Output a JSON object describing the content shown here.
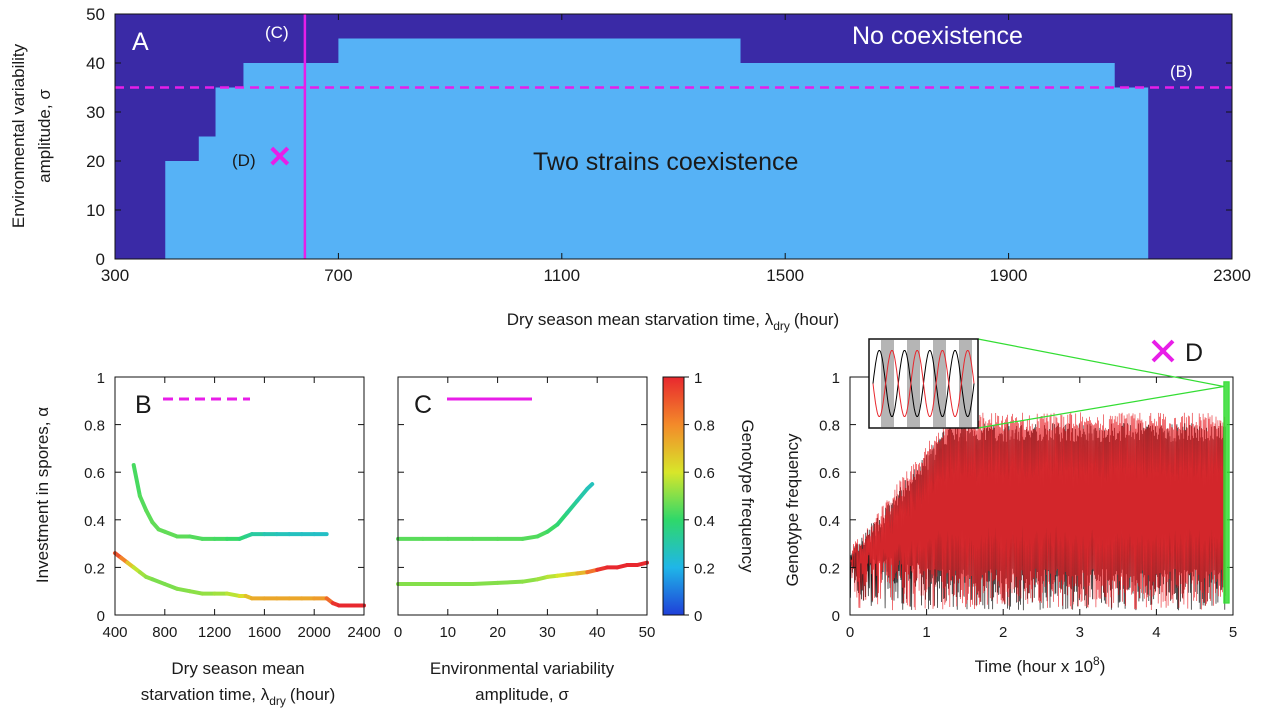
{
  "colors": {
    "no_coexistence": "#3a2aa6",
    "coexistence": "#56b2f6",
    "magenta": "#e81ee8",
    "series_black": "#000000",
    "series_red": "#e8282e",
    "zoom_green": "#33dd33",
    "colorbar": [
      "#1f3fd8",
      "#1fb6e8",
      "#2fd86a",
      "#d8e62a",
      "#f38a2a",
      "#e8282e"
    ]
  },
  "chart_data": [
    {
      "panel": "A",
      "type": "heatmap",
      "xlabel": "Dry season mean starvation time, λ",
      "xlabel_sub": "dry",
      "xlabel_unit": "(hour)",
      "ylabel_line1": "Environmental variability",
      "ylabel_line2": "amplitude, σ",
      "xlim": [
        300,
        2300
      ],
      "ylim": [
        0,
        50
      ],
      "xticks": [
        300,
        700,
        1100,
        1500,
        1900,
        2300
      ],
      "yticks": [
        0,
        10,
        20,
        30,
        40,
        50
      ],
      "regions": {
        "no_coexistence_label": "No coexistence",
        "coexistence_label": "Two strains coexistence"
      },
      "coexistence_boundary_steps": [
        {
          "x0": 390,
          "x1": 450,
          "top": 20
        },
        {
          "x0": 450,
          "x1": 480,
          "top": 25
        },
        {
          "x0": 480,
          "x1": 530,
          "top": 35
        },
        {
          "x0": 530,
          "x1": 700,
          "top": 40
        },
        {
          "x0": 700,
          "x1": 1420,
          "top": 45
        },
        {
          "x0": 1420,
          "x1": 2090,
          "top": 40
        },
        {
          "x0": 2090,
          "x1": 2150,
          "top": 35
        }
      ],
      "hline": {
        "y": 35,
        "label": "(B)"
      },
      "vline": {
        "x": 640,
        "label": "(C)"
      },
      "marker": {
        "x": 595,
        "y": 21,
        "label": "(D)"
      }
    },
    {
      "panel": "B",
      "type": "line",
      "xlabel_line1": "Dry season mean",
      "xlabel_line2": "starvation time, λ",
      "xlabel_sub": "dry",
      "xlabel_unit": "(hour)",
      "ylabel": "Investment in spores, α",
      "xlim": [
        400,
        2400
      ],
      "ylim": [
        0,
        1
      ],
      "xticks": [
        400,
        800,
        1200,
        1600,
        2000,
        2400
      ],
      "xtick_labels": [
        "400",
        "800",
        "1200",
        "1600",
        "2000",
        "2400"
      ],
      "yticks": [
        0,
        0.2,
        0.4,
        0.6,
        0.8,
        1
      ],
      "ytick_labels": [
        "0",
        "0.2",
        "0.4",
        "0.6",
        "0.8",
        "1"
      ],
      "series": [
        {
          "x": [
            550,
            600,
            650,
            700,
            750,
            800,
            900,
            1000,
            1100,
            1200,
            1300,
            1400,
            1450,
            1500,
            1600,
            1700,
            1800,
            1900,
            2000,
            2100
          ],
          "y": [
            0.63,
            0.5,
            0.44,
            0.39,
            0.36,
            0.35,
            0.33,
            0.33,
            0.32,
            0.32,
            0.32,
            0.32,
            0.33,
            0.34,
            0.34,
            0.34,
            0.34,
            0.34,
            0.34,
            0.34
          ],
          "f": [
            0.42,
            0.44,
            0.45,
            0.46,
            0.46,
            0.46,
            0.46,
            0.45,
            0.44,
            0.43,
            0.42,
            0.4,
            0.36,
            0.33,
            0.3,
            0.28,
            0.27,
            0.26,
            0.26,
            0.25
          ]
        },
        {
          "x": [
            400,
            450,
            500,
            550,
            600,
            650,
            700,
            800,
            900,
            1000,
            1100,
            1200,
            1300,
            1400,
            1450,
            1500,
            1600,
            1700,
            1800,
            1900,
            2000,
            2100,
            2150,
            2200,
            2300,
            2400
          ],
          "y": [
            0.26,
            0.24,
            0.22,
            0.2,
            0.18,
            0.16,
            0.15,
            0.13,
            0.11,
            0.1,
            0.09,
            0.09,
            0.09,
            0.08,
            0.08,
            0.07,
            0.07,
            0.07,
            0.07,
            0.07,
            0.07,
            0.07,
            0.05,
            0.04,
            0.04,
            0.04
          ],
          "f": [
            0.95,
            0.88,
            0.75,
            0.6,
            0.55,
            0.52,
            0.5,
            0.48,
            0.5,
            0.5,
            0.52,
            0.52,
            0.55,
            0.58,
            0.65,
            0.72,
            0.74,
            0.74,
            0.74,
            0.74,
            0.74,
            0.78,
            0.95,
            1.0,
            1.0,
            1.0
          ]
        }
      ],
      "legend_line": "dashed"
    },
    {
      "panel": "C",
      "type": "line",
      "xlabel_line1": "Environmental variability",
      "xlabel_line2": "amplitude, σ",
      "xlim": [
        0,
        50
      ],
      "ylim": [
        0,
        1
      ],
      "xticks": [
        0,
        10,
        20,
        30,
        40,
        50
      ],
      "xtick_labels": [
        "0",
        "10",
        "20",
        "30",
        "40",
        "50"
      ],
      "yticks": [
        0,
        0.2,
        0.4,
        0.6,
        0.8,
        1
      ],
      "series": [
        {
          "x": [
            0,
            5,
            10,
            15,
            20,
            25,
            28,
            30,
            32,
            34,
            36,
            38,
            39
          ],
          "y": [
            0.32,
            0.32,
            0.32,
            0.32,
            0.32,
            0.32,
            0.33,
            0.35,
            0.38,
            0.43,
            0.48,
            0.53,
            0.55
          ],
          "f": [
            0.45,
            0.45,
            0.45,
            0.45,
            0.45,
            0.45,
            0.44,
            0.43,
            0.4,
            0.36,
            0.32,
            0.28,
            0.26
          ]
        },
        {
          "x": [
            0,
            5,
            10,
            15,
            20,
            25,
            28,
            30,
            32,
            34,
            36,
            38,
            40,
            42,
            44,
            46,
            48,
            50
          ],
          "y": [
            0.13,
            0.13,
            0.13,
            0.13,
            0.135,
            0.14,
            0.15,
            0.16,
            0.165,
            0.17,
            0.175,
            0.18,
            0.19,
            0.2,
            0.2,
            0.21,
            0.21,
            0.22
          ],
          "f": [
            0.5,
            0.5,
            0.5,
            0.5,
            0.5,
            0.5,
            0.52,
            0.55,
            0.58,
            0.62,
            0.67,
            0.74,
            0.95,
            1.0,
            1.0,
            1.0,
            1.0,
            1.0
          ]
        }
      ],
      "legend_line": "solid",
      "colorbar": {
        "label": "Genotype frequency",
        "ticks": [
          "0",
          "0.2",
          "0.4",
          "0.6",
          "0.8",
          "1"
        ]
      }
    },
    {
      "panel": "D",
      "type": "line",
      "xlabel": "Time (hour x 10",
      "xlabel_sup": "8",
      "xlabel_close": ")",
      "ylabel": "Genotype frequency",
      "xlim": [
        0,
        5
      ],
      "ylim": [
        0,
        1
      ],
      "xticks": [
        0,
        1,
        2,
        3,
        4,
        5
      ],
      "xtick_labels": [
        "0",
        "1",
        "2",
        "3",
        "4",
        "5"
      ],
      "yticks": [
        0,
        0.2,
        0.4,
        0.6,
        0.8,
        1
      ],
      "ytick_labels": [
        "0",
        "0.2",
        "0.4",
        "0.6",
        "0.8",
        "1"
      ],
      "series": [
        {
          "name_color": "black",
          "envelope_low": 0.02,
          "envelope_high": 0.85
        },
        {
          "name_color": "red",
          "envelope_low": 0.02,
          "envelope_high": 0.9
        }
      ],
      "zoom_region": {
        "x0": 4.88,
        "x1": 4.95,
        "y0": 0.05,
        "y1": 0.98
      }
    }
  ],
  "panel_labels": {
    "a": "A",
    "b": "B",
    "c": "C",
    "d": "D"
  }
}
